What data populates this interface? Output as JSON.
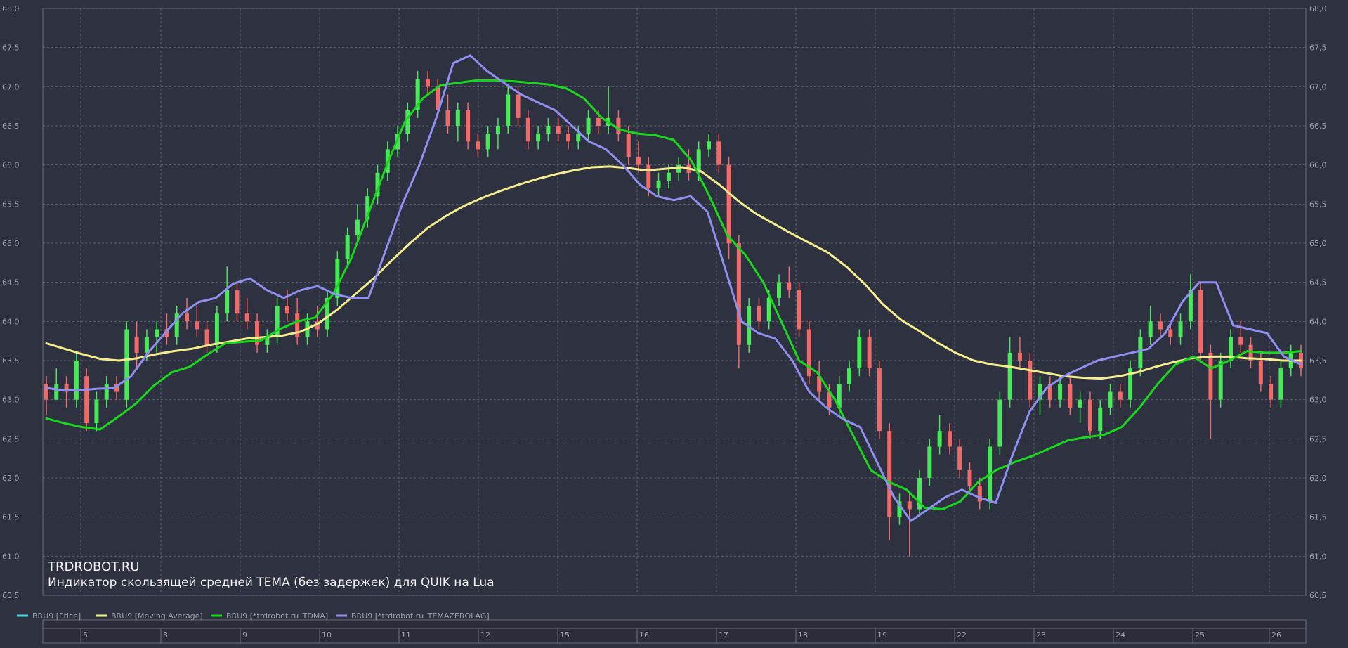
{
  "watermark": {
    "title": "TRDROBOT.RU",
    "subtitle": "Индикатор скользящей средней TEMA (без задержек) для QUIK на Lua"
  },
  "legend": [
    {
      "label": "BRU9 [Price]",
      "color": "#4fd0e0"
    },
    {
      "label": "BRU9 [Moving Average]",
      "color": "#f6ee8c"
    },
    {
      "label": "BRU9 [*trdrobot.ru_TDMA]",
      "color": "#19d81c"
    },
    {
      "label": "BRU9 [*trdrobot.ru_TEMAZEROLAG]",
      "color": "#8f8ff0"
    }
  ],
  "chart_data": {
    "type": "line",
    "ylim": [
      60.5,
      68.0
    ],
    "yticks": [
      "68,0",
      "67,5",
      "67,0",
      "66,5",
      "66,0",
      "65,5",
      "65,0",
      "64,5",
      "64,0",
      "63,5",
      "63,0",
      "62,5",
      "62,0",
      "61,5",
      "61,0",
      "60,5"
    ],
    "yticks_values": [
      68.0,
      67.5,
      67.0,
      66.5,
      66.0,
      65.5,
      65.0,
      64.5,
      64.0,
      63.5,
      63.0,
      62.5,
      62.0,
      61.5,
      61.0,
      60.5
    ],
    "date_labels": [
      "5",
      "8",
      "9",
      "10",
      "11",
      "12",
      "15",
      "16",
      "17",
      "18",
      "19",
      "22",
      "23",
      "24",
      "25",
      "26"
    ],
    "grid": true,
    "candle_colors": {
      "up": "#48e85a",
      "down": "#f06a6a"
    },
    "candles": [
      {
        "o": 63.2,
        "h": 63.3,
        "l": 62.8,
        "c": 63.0
      },
      {
        "o": 63.0,
        "h": 63.4,
        "l": 63.0,
        "c": 63.2
      },
      {
        "o": 63.2,
        "h": 63.3,
        "l": 62.9,
        "c": 63.1
      },
      {
        "o": 63.0,
        "h": 63.6,
        "l": 62.9,
        "c": 63.5
      },
      {
        "o": 63.3,
        "h": 63.4,
        "l": 62.6,
        "c": 62.7
      },
      {
        "o": 62.7,
        "h": 63.1,
        "l": 62.6,
        "c": 63.0
      },
      {
        "o": 63.0,
        "h": 63.3,
        "l": 62.9,
        "c": 63.2
      },
      {
        "o": 63.2,
        "h": 63.3,
        "l": 63.0,
        "c": 63.1
      },
      {
        "o": 63.0,
        "h": 64.0,
        "l": 62.9,
        "c": 63.9
      },
      {
        "o": 63.8,
        "h": 64.0,
        "l": 63.4,
        "c": 63.6
      },
      {
        "o": 63.6,
        "h": 63.9,
        "l": 63.5,
        "c": 63.8
      },
      {
        "o": 63.8,
        "h": 64.0,
        "l": 63.6,
        "c": 63.9
      },
      {
        "o": 63.9,
        "h": 64.1,
        "l": 63.7,
        "c": 63.8
      },
      {
        "o": 63.8,
        "h": 64.2,
        "l": 63.7,
        "c": 64.1
      },
      {
        "o": 64.1,
        "h": 64.3,
        "l": 63.9,
        "c": 64.0
      },
      {
        "o": 64.0,
        "h": 64.2,
        "l": 63.8,
        "c": 63.9
      },
      {
        "o": 63.9,
        "h": 64.0,
        "l": 63.6,
        "c": 63.7
      },
      {
        "o": 63.7,
        "h": 64.2,
        "l": 63.6,
        "c": 64.1
      },
      {
        "o": 64.1,
        "h": 64.7,
        "l": 64.0,
        "c": 64.4
      },
      {
        "o": 64.4,
        "h": 64.5,
        "l": 64.0,
        "c": 64.1
      },
      {
        "o": 64.1,
        "h": 64.3,
        "l": 63.9,
        "c": 64.0
      },
      {
        "o": 64.0,
        "h": 64.1,
        "l": 63.6,
        "c": 63.7
      },
      {
        "o": 63.7,
        "h": 63.9,
        "l": 63.6,
        "c": 63.8
      },
      {
        "o": 63.8,
        "h": 64.3,
        "l": 63.7,
        "c": 64.2
      },
      {
        "o": 64.2,
        "h": 64.4,
        "l": 64.0,
        "c": 64.1
      },
      {
        "o": 64.1,
        "h": 64.3,
        "l": 63.7,
        "c": 63.8
      },
      {
        "o": 63.8,
        "h": 64.1,
        "l": 63.7,
        "c": 64.0
      },
      {
        "o": 64.0,
        "h": 64.2,
        "l": 63.8,
        "c": 63.9
      },
      {
        "o": 63.9,
        "h": 64.4,
        "l": 63.8,
        "c": 64.3
      },
      {
        "o": 64.3,
        "h": 64.9,
        "l": 64.2,
        "c": 64.8
      },
      {
        "o": 64.8,
        "h": 65.2,
        "l": 64.7,
        "c": 65.1
      },
      {
        "o": 65.1,
        "h": 65.5,
        "l": 65.0,
        "c": 65.3
      },
      {
        "o": 65.3,
        "h": 65.7,
        "l": 65.2,
        "c": 65.6
      },
      {
        "o": 65.6,
        "h": 66.0,
        "l": 65.5,
        "c": 65.9
      },
      {
        "o": 65.9,
        "h": 66.3,
        "l": 65.8,
        "c": 66.2
      },
      {
        "o": 66.2,
        "h": 66.5,
        "l": 66.1,
        "c": 66.4
      },
      {
        "o": 66.4,
        "h": 66.8,
        "l": 66.3,
        "c": 66.7
      },
      {
        "o": 66.7,
        "h": 67.2,
        "l": 66.6,
        "c": 67.1
      },
      {
        "o": 67.1,
        "h": 67.2,
        "l": 66.9,
        "c": 67.0
      },
      {
        "o": 67.0,
        "h": 67.1,
        "l": 66.6,
        "c": 66.7
      },
      {
        "o": 66.7,
        "h": 66.9,
        "l": 66.4,
        "c": 66.5
      },
      {
        "o": 66.5,
        "h": 66.8,
        "l": 66.3,
        "c": 66.7
      },
      {
        "o": 66.7,
        "h": 66.8,
        "l": 66.2,
        "c": 66.3
      },
      {
        "o": 66.3,
        "h": 66.4,
        "l": 66.1,
        "c": 66.2
      },
      {
        "o": 66.2,
        "h": 66.5,
        "l": 66.1,
        "c": 66.4
      },
      {
        "o": 66.4,
        "h": 66.6,
        "l": 66.2,
        "c": 66.5
      },
      {
        "o": 66.5,
        "h": 67.0,
        "l": 66.4,
        "c": 66.9
      },
      {
        "o": 66.9,
        "h": 67.0,
        "l": 66.5,
        "c": 66.6
      },
      {
        "o": 66.6,
        "h": 66.7,
        "l": 66.2,
        "c": 66.3
      },
      {
        "o": 66.3,
        "h": 66.5,
        "l": 66.2,
        "c": 66.4
      },
      {
        "o": 66.4,
        "h": 66.6,
        "l": 66.3,
        "c": 66.5
      },
      {
        "o": 66.5,
        "h": 66.6,
        "l": 66.3,
        "c": 66.4
      },
      {
        "o": 66.4,
        "h": 66.5,
        "l": 66.2,
        "c": 66.3
      },
      {
        "o": 66.3,
        "h": 66.5,
        "l": 66.2,
        "c": 66.4
      },
      {
        "o": 66.4,
        "h": 66.7,
        "l": 66.3,
        "c": 66.6
      },
      {
        "o": 66.6,
        "h": 66.7,
        "l": 66.4,
        "c": 66.5
      },
      {
        "o": 66.5,
        "h": 67.0,
        "l": 66.4,
        "c": 66.6
      },
      {
        "o": 66.6,
        "h": 66.7,
        "l": 66.3,
        "c": 66.4
      },
      {
        "o": 66.4,
        "h": 66.5,
        "l": 66.0,
        "c": 66.1
      },
      {
        "o": 66.1,
        "h": 66.3,
        "l": 65.9,
        "c": 66.0
      },
      {
        "o": 66.0,
        "h": 66.1,
        "l": 65.6,
        "c": 65.7
      },
      {
        "o": 65.7,
        "h": 65.9,
        "l": 65.6,
        "c": 65.8
      },
      {
        "o": 65.8,
        "h": 66.0,
        "l": 65.7,
        "c": 65.9
      },
      {
        "o": 65.9,
        "h": 66.1,
        "l": 65.8,
        "c": 66.0
      },
      {
        "o": 66.0,
        "h": 66.2,
        "l": 65.8,
        "c": 65.9
      },
      {
        "o": 65.9,
        "h": 66.3,
        "l": 65.8,
        "c": 66.2
      },
      {
        "o": 66.2,
        "h": 66.4,
        "l": 66.1,
        "c": 66.3
      },
      {
        "o": 66.3,
        "h": 66.4,
        "l": 65.9,
        "c": 66.0
      },
      {
        "o": 66.0,
        "h": 66.1,
        "l": 64.8,
        "c": 65.0
      },
      {
        "o": 65.0,
        "h": 65.1,
        "l": 63.4,
        "c": 63.7
      },
      {
        "o": 63.7,
        "h": 64.3,
        "l": 63.6,
        "c": 64.2
      },
      {
        "o": 64.2,
        "h": 64.3,
        "l": 63.9,
        "c": 64.0
      },
      {
        "o": 64.0,
        "h": 64.4,
        "l": 63.9,
        "c": 64.3
      },
      {
        "o": 64.3,
        "h": 64.6,
        "l": 64.2,
        "c": 64.5
      },
      {
        "o": 64.5,
        "h": 64.7,
        "l": 64.3,
        "c": 64.4
      },
      {
        "o": 64.4,
        "h": 64.5,
        "l": 63.8,
        "c": 63.9
      },
      {
        "o": 63.9,
        "h": 64.0,
        "l": 63.2,
        "c": 63.3
      },
      {
        "o": 63.3,
        "h": 63.5,
        "l": 63.0,
        "c": 63.1
      },
      {
        "o": 63.1,
        "h": 63.2,
        "l": 62.8,
        "c": 62.9
      },
      {
        "o": 62.9,
        "h": 63.3,
        "l": 62.8,
        "c": 63.2
      },
      {
        "o": 63.2,
        "h": 63.5,
        "l": 63.1,
        "c": 63.4
      },
      {
        "o": 63.4,
        "h": 63.9,
        "l": 63.3,
        "c": 63.8
      },
      {
        "o": 63.8,
        "h": 63.9,
        "l": 63.3,
        "c": 63.4
      },
      {
        "o": 63.4,
        "h": 63.5,
        "l": 62.5,
        "c": 62.6
      },
      {
        "o": 62.6,
        "h": 62.7,
        "l": 61.2,
        "c": 61.5
      },
      {
        "o": 61.5,
        "h": 61.8,
        "l": 61.4,
        "c": 61.7
      },
      {
        "o": 61.7,
        "h": 61.8,
        "l": 61.0,
        "c": 61.6
      },
      {
        "o": 61.6,
        "h": 62.1,
        "l": 61.5,
        "c": 62.0
      },
      {
        "o": 62.0,
        "h": 62.5,
        "l": 61.9,
        "c": 62.4
      },
      {
        "o": 62.4,
        "h": 62.8,
        "l": 62.3,
        "c": 62.6
      },
      {
        "o": 62.6,
        "h": 62.7,
        "l": 62.3,
        "c": 62.4
      },
      {
        "o": 62.4,
        "h": 62.5,
        "l": 62.0,
        "c": 62.1
      },
      {
        "o": 62.1,
        "h": 62.2,
        "l": 61.8,
        "c": 61.9
      },
      {
        "o": 61.9,
        "h": 62.0,
        "l": 61.6,
        "c": 61.7
      },
      {
        "o": 61.7,
        "h": 62.5,
        "l": 61.6,
        "c": 62.4
      },
      {
        "o": 62.4,
        "h": 63.1,
        "l": 62.3,
        "c": 63.0
      },
      {
        "o": 63.0,
        "h": 63.8,
        "l": 62.9,
        "c": 63.6
      },
      {
        "o": 63.6,
        "h": 63.8,
        "l": 63.4,
        "c": 63.5
      },
      {
        "o": 63.5,
        "h": 63.6,
        "l": 62.9,
        "c": 63.0
      },
      {
        "o": 63.0,
        "h": 63.3,
        "l": 62.8,
        "c": 63.2
      },
      {
        "o": 63.2,
        "h": 63.3,
        "l": 62.9,
        "c": 63.0
      },
      {
        "o": 63.0,
        "h": 63.3,
        "l": 62.9,
        "c": 63.2
      },
      {
        "o": 63.2,
        "h": 63.3,
        "l": 62.8,
        "c": 62.9
      },
      {
        "o": 62.9,
        "h": 63.1,
        "l": 62.7,
        "c": 63.0
      },
      {
        "o": 63.0,
        "h": 63.1,
        "l": 62.5,
        "c": 62.6
      },
      {
        "o": 62.6,
        "h": 63.0,
        "l": 62.5,
        "c": 62.9
      },
      {
        "o": 62.9,
        "h": 63.2,
        "l": 62.8,
        "c": 63.1
      },
      {
        "o": 63.1,
        "h": 63.2,
        "l": 62.9,
        "c": 63.0
      },
      {
        "o": 63.0,
        "h": 63.5,
        "l": 62.9,
        "c": 63.4
      },
      {
        "o": 63.4,
        "h": 63.9,
        "l": 63.3,
        "c": 63.8
      },
      {
        "o": 63.8,
        "h": 64.2,
        "l": 63.7,
        "c": 64.0
      },
      {
        "o": 64.0,
        "h": 64.1,
        "l": 63.8,
        "c": 63.9
      },
      {
        "o": 63.9,
        "h": 64.0,
        "l": 63.7,
        "c": 63.8
      },
      {
        "o": 63.8,
        "h": 64.1,
        "l": 63.7,
        "c": 64.0
      },
      {
        "o": 64.0,
        "h": 64.6,
        "l": 63.9,
        "c": 64.4
      },
      {
        "o": 64.4,
        "h": 64.5,
        "l": 63.5,
        "c": 63.6
      },
      {
        "o": 63.6,
        "h": 63.7,
        "l": 62.5,
        "c": 63.0
      },
      {
        "o": 63.0,
        "h": 63.6,
        "l": 62.9,
        "c": 63.5
      },
      {
        "o": 63.5,
        "h": 63.9,
        "l": 63.4,
        "c": 63.8
      },
      {
        "o": 63.8,
        "h": 64.0,
        "l": 63.6,
        "c": 63.7
      },
      {
        "o": 63.7,
        "h": 63.8,
        "l": 63.4,
        "c": 63.5
      },
      {
        "o": 63.5,
        "h": 63.6,
        "l": 63.1,
        "c": 63.2
      },
      {
        "o": 63.2,
        "h": 63.3,
        "l": 62.9,
        "c": 63.0
      },
      {
        "o": 63.0,
        "h": 63.5,
        "l": 62.9,
        "c": 63.4
      },
      {
        "o": 63.4,
        "h": 63.7,
        "l": 63.3,
        "c": 63.6
      },
      {
        "o": 63.6,
        "h": 63.7,
        "l": 63.3,
        "c": 63.4
      }
    ],
    "series": [
      {
        "name": "BRU9 [Moving Average]",
        "color": "#f6ee8c",
        "values": [
          63.72,
          63.65,
          63.58,
          63.52,
          63.5,
          63.53,
          63.58,
          63.62,
          63.65,
          63.7,
          63.74,
          63.78,
          63.8,
          63.82,
          63.87,
          63.98,
          64.15,
          64.35,
          64.55,
          64.78,
          65.0,
          65.2,
          65.35,
          65.48,
          65.58,
          65.67,
          65.75,
          65.82,
          65.88,
          65.93,
          65.97,
          65.98,
          65.96,
          65.93,
          65.95,
          65.97,
          65.92,
          65.75,
          65.55,
          65.38,
          65.25,
          65.12,
          65.0,
          64.88,
          64.7,
          64.48,
          64.22,
          64.02,
          63.88,
          63.73,
          63.6,
          63.5,
          63.45,
          63.42,
          63.38,
          63.34,
          63.3,
          63.28,
          63.27,
          63.3,
          63.35,
          63.42,
          63.48,
          63.53,
          63.55,
          63.55,
          63.53,
          63.52,
          63.5,
          63.5
        ]
      },
      {
        "name": "BRU9 [*trdrobot.ru_TDMA]",
        "color": "#19d81c",
        "values": [
          62.76,
          62.7,
          62.65,
          62.62,
          62.78,
          62.95,
          63.18,
          63.35,
          63.42,
          63.58,
          63.72,
          63.74,
          63.76,
          63.9,
          64.0,
          64.05,
          64.35,
          64.8,
          65.4,
          66.0,
          66.55,
          66.85,
          67.02,
          67.05,
          67.08,
          67.08,
          67.07,
          67.05,
          67.03,
          66.98,
          66.85,
          66.6,
          66.45,
          66.4,
          66.38,
          66.32,
          66.05,
          65.6,
          65.1,
          64.85,
          64.5,
          64.0,
          63.5,
          63.35,
          63.0,
          62.55,
          62.1,
          61.95,
          61.85,
          61.62,
          61.6,
          61.7,
          61.95,
          62.1,
          62.2,
          62.28,
          62.38,
          62.48,
          62.52,
          62.55,
          62.65,
          62.9,
          63.2,
          63.45,
          63.55,
          63.4,
          63.5,
          63.62,
          63.6,
          63.6,
          63.62
        ]
      },
      {
        "name": "BRU9 [*trdrobot.ru_TEMAZEROLAG]",
        "color": "#8f8ff0",
        "values": [
          63.15,
          63.12,
          63.12,
          63.14,
          63.15,
          63.3,
          63.6,
          63.85,
          64.1,
          64.25,
          64.3,
          64.48,
          64.55,
          64.4,
          64.3,
          64.4,
          64.45,
          64.35,
          64.3,
          64.3,
          64.9,
          65.5,
          66.0,
          66.6,
          67.3,
          67.4,
          67.2,
          67.05,
          66.9,
          66.8,
          66.7,
          66.5,
          66.3,
          66.2,
          66.0,
          65.75,
          65.6,
          65.55,
          65.6,
          65.4,
          64.7,
          64.0,
          63.85,
          63.78,
          63.5,
          63.1,
          62.9,
          62.75,
          62.65,
          62.2,
          61.75,
          61.45,
          61.6,
          61.75,
          61.85,
          61.75,
          61.68,
          62.3,
          62.85,
          63.15,
          63.3,
          63.4,
          63.5,
          63.55,
          63.6,
          63.65,
          63.85,
          64.25,
          64.5,
          64.5,
          63.95,
          63.9,
          63.85,
          63.55,
          63.45
        ]
      }
    ]
  }
}
